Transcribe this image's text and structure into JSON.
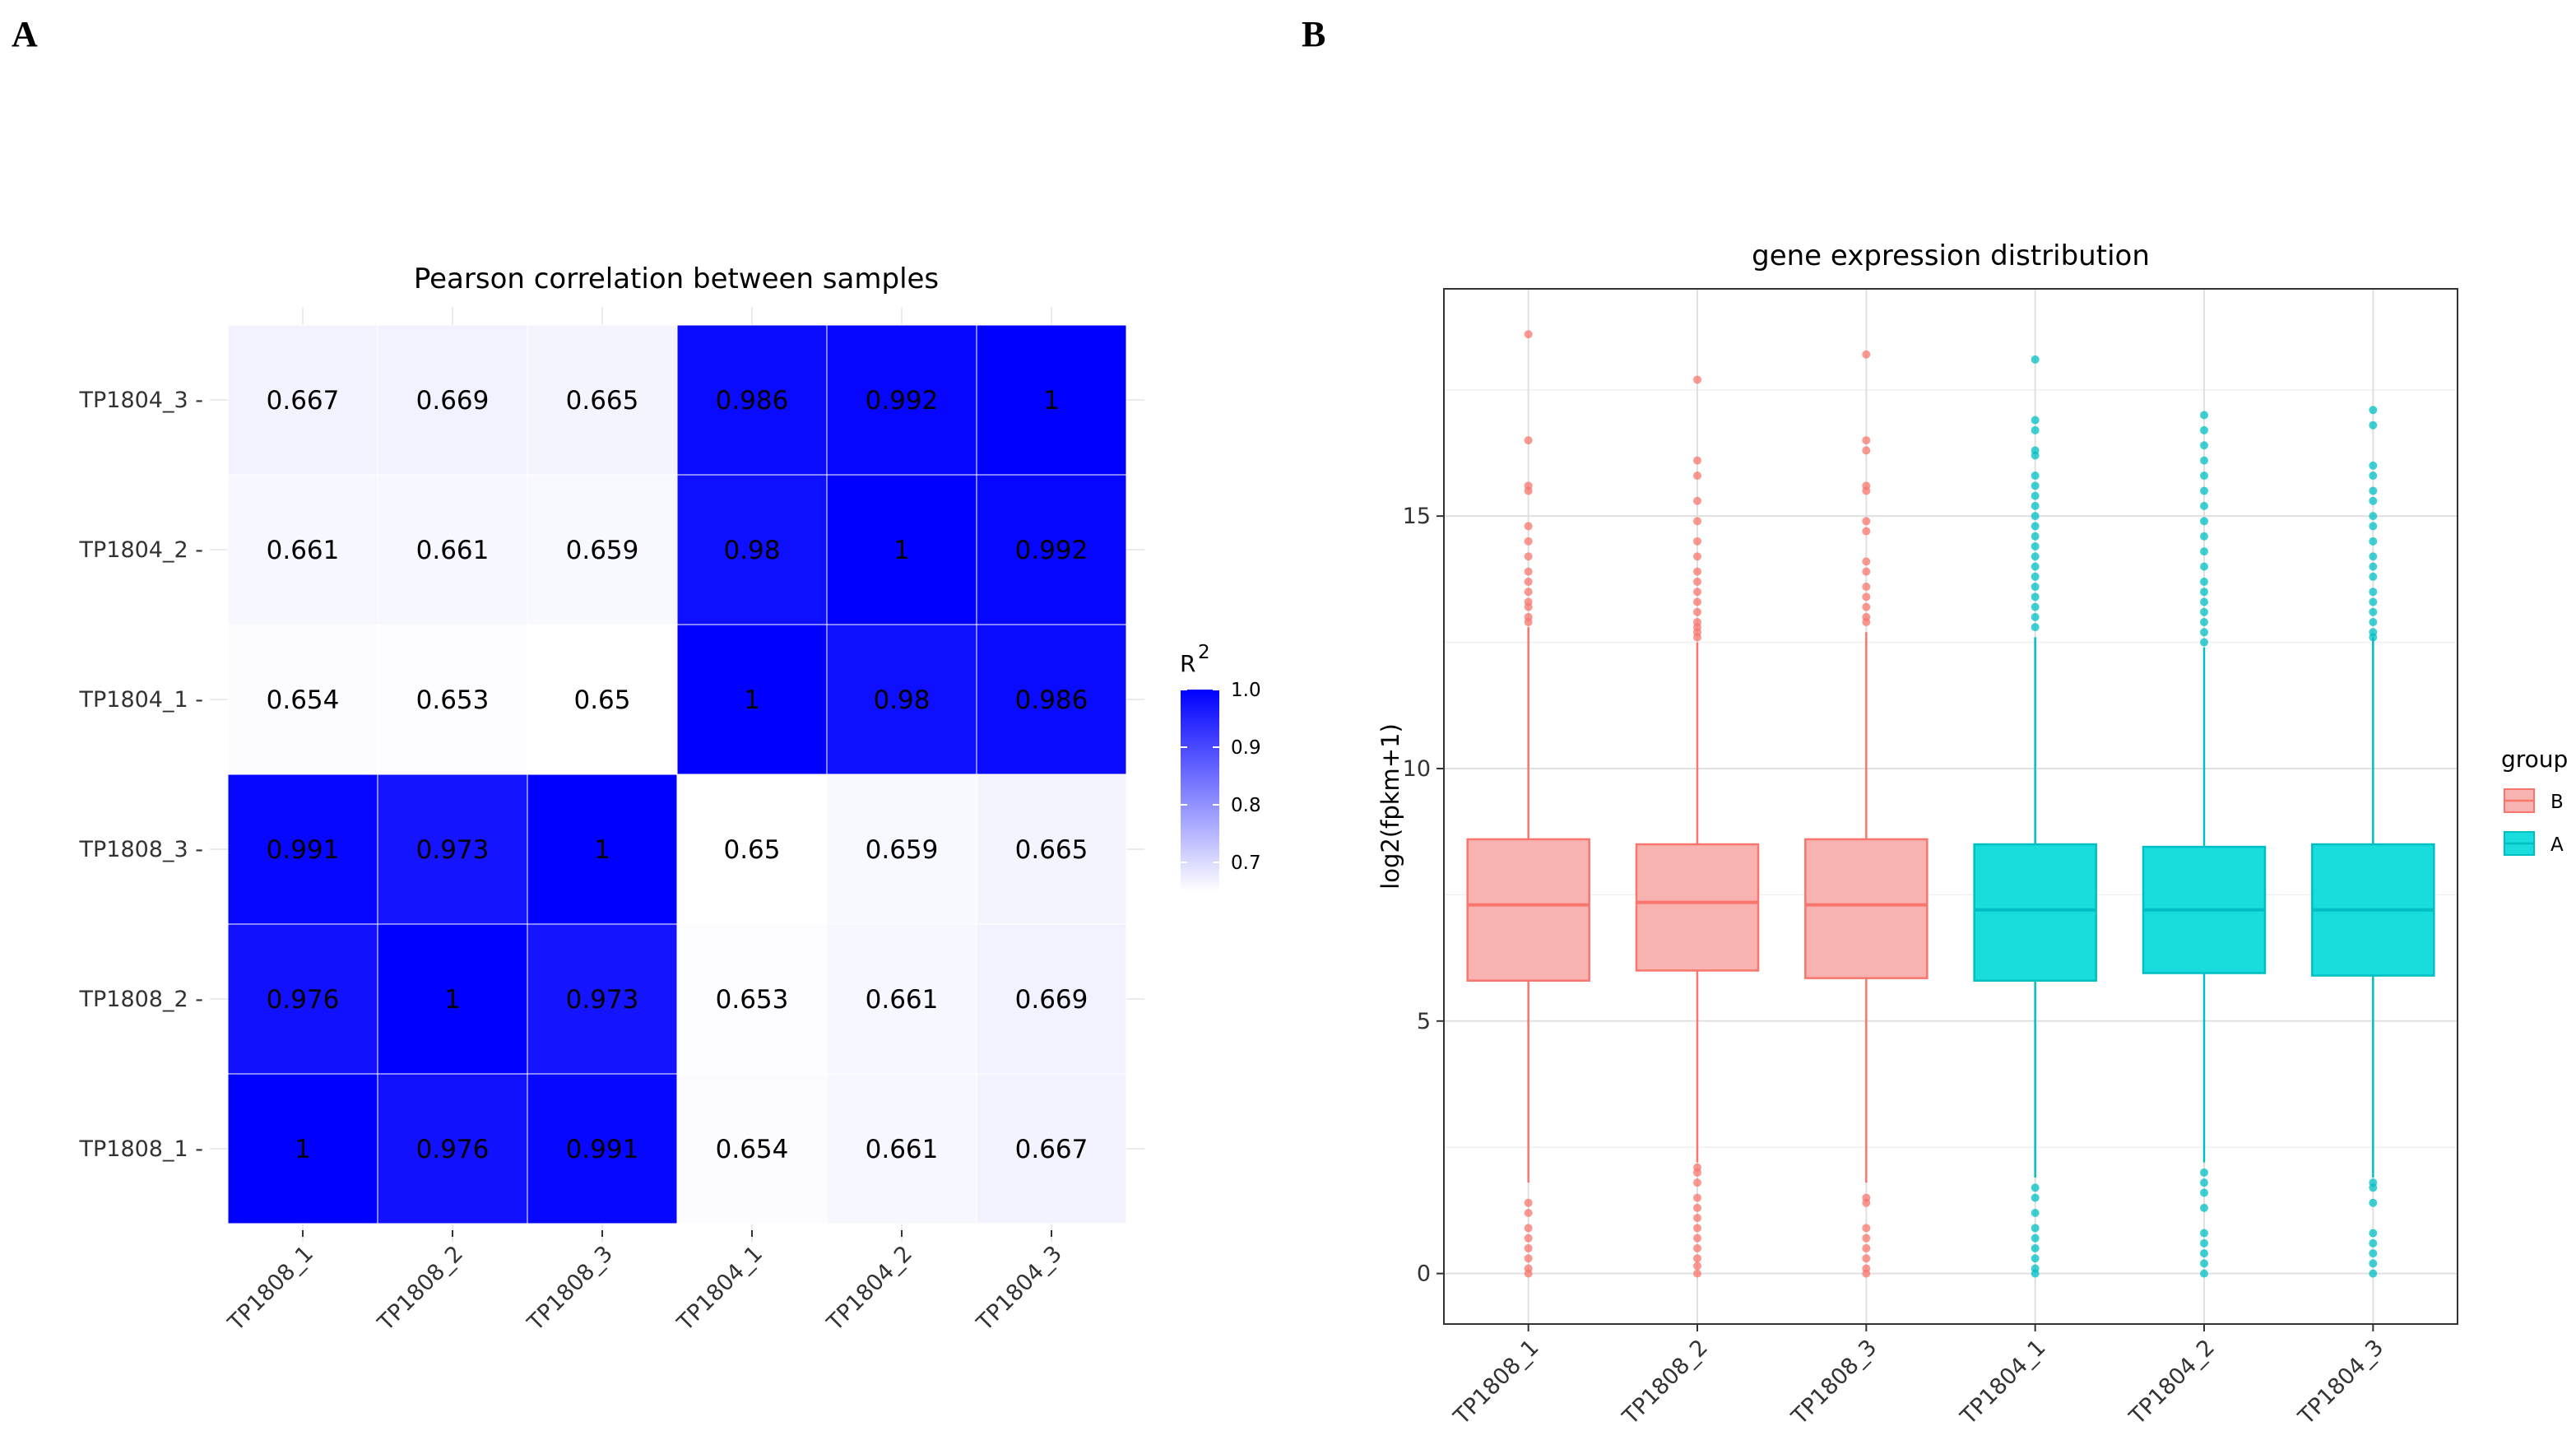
{
  "panels": {
    "a_label": "A",
    "b_label": "B"
  },
  "chart_data": [
    {
      "type": "heatmap",
      "title": "Pearson correlation between samples",
      "x_labels": [
        "TP1808_1",
        "TP1808_2",
        "TP1808_3",
        "TP1804_1",
        "TP1804_2",
        "TP1804_3"
      ],
      "y_labels": [
        "TP1808_1",
        "TP1808_2",
        "TP1808_3",
        "TP1804_1",
        "TP1804_2",
        "TP1804_3"
      ],
      "values": [
        [
          "1",
          "0.976",
          "0.991",
          "0.654",
          "0.661",
          "0.667"
        ],
        [
          "0.976",
          "1",
          "0.973",
          "0.653",
          "0.661",
          "0.669"
        ],
        [
          "0.991",
          "0.973",
          "1",
          "0.65",
          "0.659",
          "0.665"
        ],
        [
          "0.654",
          "0.653",
          "0.65",
          "1",
          "0.98",
          "0.986"
        ],
        [
          "0.661",
          "0.661",
          "0.659",
          "0.98",
          "1",
          "0.992"
        ],
        [
          "0.667",
          "0.669",
          "0.665",
          "0.986",
          "0.992",
          "1"
        ]
      ],
      "legend": {
        "title": "R",
        "title_sup": "2",
        "range": [
          0.65,
          1.0
        ],
        "ticks": [
          "1.0",
          "0.9",
          "0.8",
          "0.7"
        ],
        "low_color": "#ffffff",
        "high_color": "#0000ff"
      }
    },
    {
      "type": "box",
      "title": "gene expression distribution",
      "ylabel": "log2(fpkm+1)",
      "xlabel": "",
      "ylim": [
        -1,
        19.5
      ],
      "yticks": [
        "0",
        "5",
        "10",
        "15"
      ],
      "categories": [
        "TP1808_1",
        "TP1808_2",
        "TP1808_3",
        "TP1804_1",
        "TP1804_2",
        "TP1804_3"
      ],
      "legend": {
        "title": "group",
        "entries": [
          {
            "label": "B",
            "fill": "#f8b3b0",
            "stroke": "#f8766d"
          },
          {
            "label": "A",
            "fill": "#19dcdc",
            "stroke": "#00bfc4"
          }
        ]
      },
      "boxes": [
        {
          "group": "B",
          "q1": 5.8,
          "median": 7.3,
          "q3": 8.6,
          "whisker_low": 1.8,
          "whisker_high": 12.8,
          "outliers": [
            18.6,
            16.5,
            15.6,
            15.5,
            14.8,
            14.5,
            14.2,
            13.9,
            13.7,
            13.5,
            13.3,
            13.2,
            13.0,
            12.9,
            1.4,
            1.2,
            0.9,
            0.7,
            0.5,
            0.3,
            0.1,
            0
          ]
        },
        {
          "group": "B",
          "q1": 6.0,
          "median": 7.35,
          "q3": 8.5,
          "whisker_low": 2.2,
          "whisker_high": 12.5,
          "outliers": [
            17.7,
            16.1,
            15.8,
            15.3,
            14.9,
            14.5,
            14.2,
            13.9,
            13.7,
            13.5,
            13.3,
            13.1,
            12.9,
            12.8,
            12.7,
            12.6,
            2.1,
            2.0,
            1.8,
            1.5,
            1.3,
            1.1,
            0.9,
            0.7,
            0.5,
            0.3,
            0.15,
            0
          ]
        },
        {
          "group": "B",
          "q1": 5.85,
          "median": 7.3,
          "q3": 8.6,
          "whisker_low": 1.8,
          "whisker_high": 12.7,
          "outliers": [
            18.2,
            16.5,
            16.3,
            15.6,
            15.5,
            14.9,
            14.7,
            14.1,
            13.9,
            13.6,
            13.4,
            13.2,
            13.0,
            12.9,
            1.5,
            1.4,
            0.9,
            0.7,
            0.5,
            0.3,
            0.1,
            0
          ]
        },
        {
          "group": "A",
          "q1": 5.8,
          "median": 7.2,
          "q3": 8.5,
          "whisker_low": 1.9,
          "whisker_high": 12.6,
          "outliers": [
            18.1,
            16.9,
            16.7,
            16.3,
            16.2,
            15.8,
            15.6,
            15.4,
            15.2,
            15.0,
            14.8,
            14.6,
            14.4,
            14.2,
            14.0,
            13.8,
            13.6,
            13.4,
            13.2,
            13.0,
            12.8,
            1.7,
            1.5,
            1.2,
            0.9,
            0.7,
            0.5,
            0.3,
            0.1,
            0
          ]
        },
        {
          "group": "A",
          "q1": 5.95,
          "median": 7.2,
          "q3": 8.45,
          "whisker_low": 2.2,
          "whisker_high": 12.4,
          "outliers": [
            17.0,
            16.7,
            16.4,
            16.1,
            15.8,
            15.5,
            15.2,
            14.9,
            14.6,
            14.3,
            14.0,
            13.7,
            13.5,
            13.3,
            13.1,
            12.9,
            12.7,
            12.5,
            2.0,
            1.8,
            1.6,
            1.3,
            0.8,
            0.6,
            0.4,
            0.2,
            0
          ]
        },
        {
          "group": "A",
          "q1": 5.9,
          "median": 7.2,
          "q3": 8.5,
          "whisker_low": 1.9,
          "whisker_high": 12.6,
          "outliers": [
            17.1,
            16.8,
            16.0,
            15.8,
            15.5,
            15.3,
            15.0,
            14.8,
            14.5,
            14.2,
            14.0,
            13.8,
            13.5,
            13.3,
            13.1,
            12.9,
            12.7,
            12.6,
            1.8,
            1.7,
            1.4,
            0.8,
            0.6,
            0.4,
            0.2,
            0
          ]
        }
      ]
    }
  ]
}
